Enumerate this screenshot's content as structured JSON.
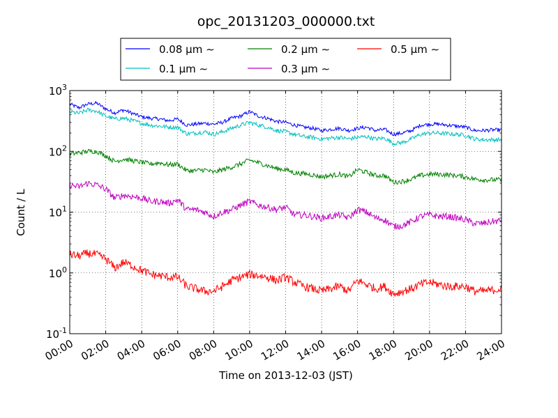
{
  "chart_data": {
    "type": "line",
    "title": "opc_20131203_000000.txt",
    "xlabel": "Time on 2013-12-03 (JST)",
    "ylabel": "Count / L",
    "x_unit": "hours",
    "xlim": [
      0,
      24
    ],
    "y_scale": "log",
    "ylim": [
      0.1,
      1000
    ],
    "grid": true,
    "legend_position": "top-center",
    "x_ticks": [
      {
        "value": 0,
        "label": "00:00"
      },
      {
        "value": 2,
        "label": "02:00"
      },
      {
        "value": 4,
        "label": "04:00"
      },
      {
        "value": 6,
        "label": "06:00"
      },
      {
        "value": 8,
        "label": "08:00"
      },
      {
        "value": 10,
        "label": "10:00"
      },
      {
        "value": 12,
        "label": "12:00"
      },
      {
        "value": 14,
        "label": "14:00"
      },
      {
        "value": 16,
        "label": "16:00"
      },
      {
        "value": 18,
        "label": "18:00"
      },
      {
        "value": 20,
        "label": "20:00"
      },
      {
        "value": 22,
        "label": "22:00"
      },
      {
        "value": 24,
        "label": "24:00"
      }
    ],
    "y_ticks": [
      {
        "value": 0.1,
        "base": "10",
        "exp": "-1"
      },
      {
        "value": 1,
        "base": "10",
        "exp": "0"
      },
      {
        "value": 10,
        "base": "10",
        "exp": "1"
      },
      {
        "value": 100,
        "base": "10",
        "exp": "2"
      },
      {
        "value": 1000,
        "base": "10",
        "exp": "3"
      }
    ],
    "series": [
      {
        "name": "0.08 μm ∼",
        "color": "#0000ff",
        "x": [
          0,
          0.5,
          1,
          1.5,
          2,
          2.5,
          3,
          3.5,
          4,
          4.5,
          5,
          5.5,
          6,
          6.5,
          7,
          7.5,
          8,
          8.5,
          9,
          9.5,
          10,
          10.5,
          11,
          11.5,
          12,
          12.5,
          13,
          13.5,
          14,
          14.5,
          15,
          15.5,
          16,
          16.5,
          17,
          17.5,
          18,
          18.5,
          19,
          19.5,
          20,
          20.5,
          21,
          21.5,
          22,
          22.5,
          23,
          23.5,
          24
        ],
        "y": [
          600,
          520,
          600,
          620,
          500,
          430,
          480,
          420,
          370,
          350,
          340,
          320,
          340,
          270,
          280,
          290,
          280,
          300,
          350,
          380,
          450,
          380,
          350,
          310,
          300,
          270,
          250,
          240,
          220,
          230,
          240,
          220,
          240,
          250,
          220,
          230,
          190,
          200,
          220,
          270,
          280,
          280,
          270,
          260,
          250,
          220,
          220,
          225,
          225
        ]
      },
      {
        "name": "0.1 μm ∼",
        "color": "#00bfbf",
        "x": [
          0,
          0.5,
          1,
          1.5,
          2,
          2.5,
          3,
          3.5,
          4,
          4.5,
          5,
          5.5,
          6,
          6.5,
          7,
          7.5,
          8,
          8.5,
          9,
          9.5,
          10,
          10.5,
          11,
          11.5,
          12,
          12.5,
          13,
          13.5,
          14,
          14.5,
          15,
          15.5,
          16,
          16.5,
          17,
          17.5,
          18,
          18.5,
          19,
          19.5,
          20,
          20.5,
          21,
          21.5,
          22,
          22.5,
          23,
          23.5,
          24
        ],
        "y": [
          450,
          420,
          480,
          460,
          380,
          340,
          350,
          320,
          290,
          270,
          260,
          250,
          250,
          195,
          200,
          210,
          190,
          210,
          240,
          270,
          300,
          270,
          250,
          220,
          210,
          190,
          175,
          170,
          160,
          165,
          170,
          160,
          170,
          175,
          160,
          165,
          135,
          140,
          160,
          190,
          200,
          200,
          195,
          190,
          185,
          160,
          155,
          155,
          155
        ]
      },
      {
        "name": "0.2 μm ∼",
        "color": "#008000",
        "x": [
          0,
          0.5,
          1,
          1.5,
          2,
          2.5,
          3,
          3.5,
          4,
          4.5,
          5,
          5.5,
          6,
          6.5,
          7,
          7.5,
          8,
          8.5,
          9,
          9.5,
          10,
          10.5,
          11,
          11.5,
          12,
          12.5,
          13,
          13.5,
          14,
          14.5,
          15,
          15.5,
          16,
          16.5,
          17,
          17.5,
          18,
          18.5,
          19,
          19.5,
          20,
          20.5,
          21,
          21.5,
          22,
          22.5,
          23,
          23.5,
          24
        ],
        "y": [
          90,
          95,
          100,
          100,
          85,
          68,
          75,
          70,
          66,
          62,
          65,
          60,
          62,
          48,
          48,
          50,
          45,
          50,
          55,
          62,
          72,
          65,
          58,
          52,
          50,
          44,
          43,
          41,
          38,
          40,
          42,
          38,
          50,
          45,
          40,
          40,
          31,
          32,
          35,
          40,
          42,
          42,
          41,
          40,
          38,
          35,
          34,
          34,
          34
        ]
      },
      {
        "name": "0.3 μm ∼",
        "color": "#bf00bf",
        "x": [
          0,
          0.5,
          1,
          1.5,
          2,
          2.5,
          3,
          3.5,
          4,
          4.5,
          5,
          5.5,
          6,
          6.5,
          7,
          7.5,
          8,
          8.5,
          9,
          9.5,
          10,
          10.5,
          11,
          11.5,
          12,
          12.5,
          13,
          13.5,
          14,
          14.5,
          15,
          15.5,
          16,
          16.5,
          17,
          17.5,
          18,
          18.5,
          19,
          19.5,
          20,
          20.5,
          21,
          21.5,
          22,
          22.5,
          23,
          23.5,
          24
        ],
        "y": [
          28,
          26,
          30,
          28,
          24,
          17,
          19,
          18,
          17,
          15,
          15,
          14,
          16,
          11,
          11,
          10,
          8.5,
          10,
          11,
          13,
          15,
          13,
          12,
          11,
          12,
          9,
          9,
          8.5,
          8,
          8.5,
          9,
          8,
          11,
          10,
          8,
          7.5,
          5.8,
          6,
          7,
          8.5,
          9,
          8.5,
          8.5,
          8,
          7.5,
          6.5,
          6.5,
          7,
          7.2
        ]
      },
      {
        "name": "0.5 μm ∼",
        "color": "#ff0000",
        "x": [
          0,
          0.5,
          1,
          1.5,
          2,
          2.5,
          3,
          3.5,
          4,
          4.5,
          5,
          5.5,
          6,
          6.5,
          7,
          7.5,
          8,
          8.5,
          9,
          9.5,
          10,
          10.5,
          11,
          11.5,
          12,
          12.5,
          13,
          13.5,
          14,
          14.5,
          15,
          15.5,
          16,
          16.5,
          17,
          17.5,
          18,
          18.5,
          19,
          19.5,
          20,
          20.5,
          21,
          21.5,
          22,
          22.5,
          23,
          23.5,
          24
        ],
        "y": [
          2,
          1.9,
          2.1,
          2,
          1.7,
          1.2,
          1.5,
          1.3,
          1.1,
          0.95,
          0.9,
          0.85,
          0.85,
          0.6,
          0.55,
          0.5,
          0.5,
          0.6,
          0.75,
          0.85,
          0.95,
          0.9,
          0.85,
          0.75,
          0.85,
          0.7,
          0.6,
          0.55,
          0.5,
          0.55,
          0.6,
          0.5,
          0.75,
          0.65,
          0.55,
          0.6,
          0.45,
          0.5,
          0.55,
          0.65,
          0.7,
          0.65,
          0.6,
          0.6,
          0.6,
          0.5,
          0.5,
          0.52,
          0.55
        ]
      }
    ]
  }
}
